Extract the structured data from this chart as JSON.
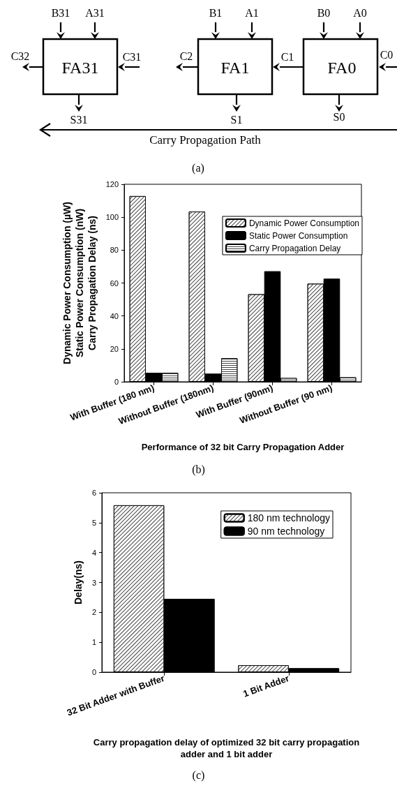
{
  "chart_data": [
    {
      "type": "other",
      "annotations": [
        "B31",
        "A31",
        "C32",
        "FA31",
        "C31",
        "S31",
        "B1",
        "A1",
        "C2",
        "FA1",
        "C1",
        "S1",
        "B0",
        "A0",
        "FA0",
        "C0",
        "S0",
        "Carry Propagation Path",
        "(a)"
      ]
    },
    {
      "type": "bar",
      "categories": [
        "With Buffer (180 nm)",
        "Without Buffer (180nm)",
        "With Buffer (90nm)",
        "Without Buffer (90 nm)"
      ],
      "series": [
        {
          "name": "Dynamic Power Consumption",
          "color": "#ffffff",
          "values": [
            112.8,
            103.4,
            53.2,
            59.6
          ]
        },
        {
          "name": "Static Power Consumption",
          "color": "#000000",
          "values": [
            5.4,
            4.9,
            67.1,
            62.6
          ]
        },
        {
          "name": "Carry Propagation Delay",
          "color": "#ffffff",
          "values": [
            5.4,
            14.3,
            2.3,
            2.7
          ]
        }
      ],
      "ylabel": "Dynamic Power Consumption (µW)\nStatic Power Consumption (nW)\nCarry Propagation Delay (ns)",
      "xlabel": "Performance of 32 bit Carry Propagation Adder",
      "ylim": [
        0,
        120
      ],
      "yticks": [
        0,
        20,
        40,
        60,
        80,
        100,
        120
      ],
      "grid": false,
      "legend": "top right",
      "annotations": [
        "(b)"
      ]
    },
    {
      "type": "bar",
      "categories": [
        "32 Bit Adder with Buffer",
        "1 Bit Adder"
      ],
      "series": [
        {
          "name": "180 nm technology",
          "color": "#ffffff",
          "values": [
            5.58,
            0.23
          ]
        },
        {
          "name": "90 nm technology",
          "color": "#000000",
          "values": [
            2.45,
            0.13
          ]
        }
      ],
      "ylabel": "Delay(ns)",
      "xlabel": "Carry propagation delay of optimized 32 bit carry propagation\nadder and 1 bit adder",
      "ylim": [
        0,
        6
      ],
      "yticks": [
        0,
        1,
        2,
        3,
        4,
        5,
        6
      ],
      "grid": false,
      "legend": "top right",
      "annotations": [
        "(c)"
      ]
    }
  ]
}
